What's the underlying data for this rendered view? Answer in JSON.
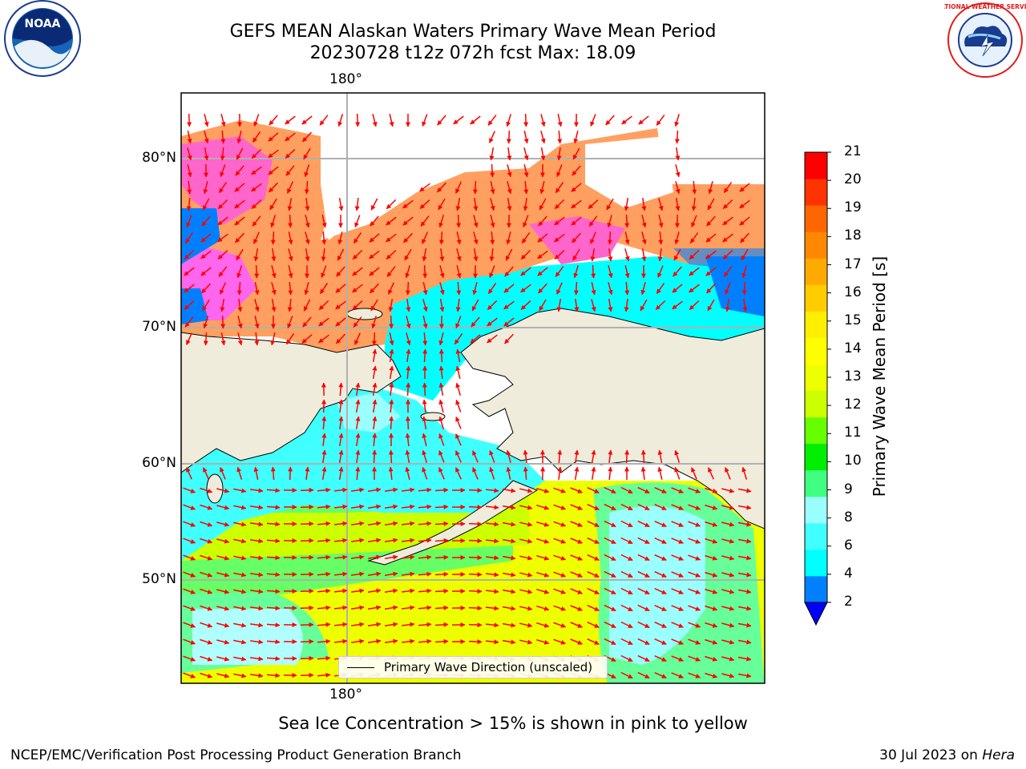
{
  "header": {
    "title_line1": "GEFS MEAN Alaskan Waters Primary Wave Mean Period",
    "title_line2": "20230728 t12z 072h fcst   Max: 18.09"
  },
  "logos": {
    "left": {
      "name": "noaa-logo",
      "text": "NOAA"
    },
    "right": {
      "name": "nws-logo",
      "text": "NATIONAL WEATHER SERVICE"
    }
  },
  "map": {
    "top_lon_label": "180°",
    "bottom_lon_label": "180°",
    "lat_labels": [
      "80°N",
      "70°N",
      "60°N",
      "50°N"
    ],
    "legend_label": "Primary Wave Direction (unscaled)",
    "colors": {
      "land": "#efecdc",
      "ocean_fill": "#00ffff",
      "arrow": "#ff0000",
      "ice_pink": "#ff66cc",
      "ice_orange": "#ffa060"
    }
  },
  "colorbar": {
    "label": "Primary Wave Mean Period [s]",
    "ticks": [
      "21",
      "20",
      "19",
      "18",
      "17",
      "16",
      "15",
      "14",
      "13",
      "12",
      "11",
      "10",
      "9",
      "8",
      "6",
      "4",
      "2"
    ],
    "colors": [
      "#0000ff",
      "#0080ff",
      "#00ffff",
      "#40ffff",
      "#99ffff",
      "#40ff80",
      "#00ee00",
      "#66ff00",
      "#ccff00",
      "#eeff00",
      "#ffff00",
      "#ffee00",
      "#ffcc00",
      "#ffaa00",
      "#ff8800",
      "#ff6600",
      "#ff3300",
      "#ff0000"
    ]
  },
  "footer": {
    "note": "Sea Ice Concentration > 15% is shown in pink to yellow",
    "left": "NCEP/EMC/Verification Post Processing Product Generation Branch",
    "right_date": "30 Jul 2023 on ",
    "right_host": "Hera"
  }
}
